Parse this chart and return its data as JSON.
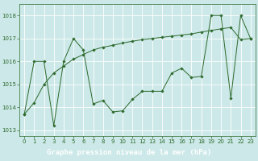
{
  "title": "Graphe pression niveau de la mer (hPa)",
  "x_values": [
    0,
    1,
    2,
    3,
    4,
    5,
    6,
    7,
    8,
    9,
    10,
    11,
    12,
    13,
    14,
    15,
    16,
    17,
    18,
    19,
    20,
    21,
    22,
    23
  ],
  "y_series1": [
    1013.7,
    1016.0,
    1016.0,
    1013.2,
    1016.0,
    1017.0,
    1016.5,
    1014.15,
    1014.3,
    1013.8,
    1013.85,
    1014.35,
    1014.7,
    1014.7,
    1014.7,
    1015.5,
    1015.7,
    1015.3,
    1015.35,
    1018.0,
    1018.0,
    1014.4,
    1018.0,
    1017.0
  ],
  "y_series2": [
    1013.7,
    1014.2,
    1015.0,
    1015.5,
    1015.8,
    1016.1,
    1016.3,
    1016.5,
    1016.62,
    1016.7,
    1016.8,
    1016.88,
    1016.95,
    1017.0,
    1017.05,
    1017.1,
    1017.15,
    1017.2,
    1017.28,
    1017.35,
    1017.42,
    1017.48,
    1016.95,
    1017.0
  ],
  "line_color": "#2d6a2d",
  "marker": "D",
  "marker_size": 1.8,
  "bg_color": "#cce8e8",
  "grid_color": "#ffffff",
  "label_bg_color": "#2d6a2d",
  "label_text_color": "#ffffff",
  "ylim": [
    1012.75,
    1018.5
  ],
  "yticks": [
    1013,
    1014,
    1015,
    1016,
    1017,
    1018
  ],
  "xlim": [
    -0.5,
    23.5
  ],
  "xticks": [
    0,
    1,
    2,
    3,
    4,
    5,
    6,
    7,
    8,
    9,
    10,
    11,
    12,
    13,
    14,
    15,
    16,
    17,
    18,
    19,
    20,
    21,
    22,
    23
  ],
  "tick_fontsize": 5.0,
  "label_fontsize": 6.5,
  "tick_color": "#2d6a2d"
}
